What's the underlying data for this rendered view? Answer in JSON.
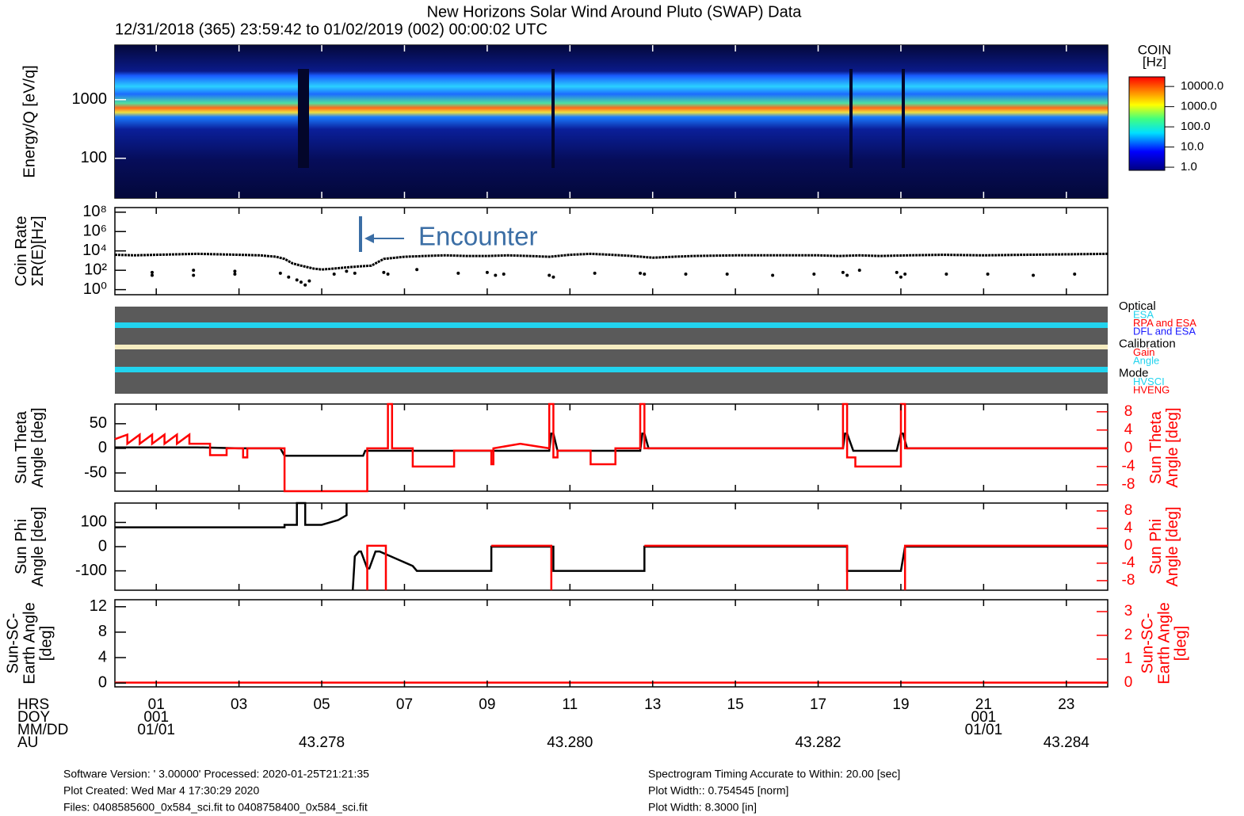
{
  "header": {
    "title": "New Horizons Solar Wind Around Pluto (SWAP) Data",
    "subtitle": "12/31/2018 (365) 23:59:42 to 01/02/2019 (002) 00:00:02 UTC"
  },
  "time_axis": {
    "xlim": [
      0,
      24
    ],
    "rows": [
      "HRS",
      "DOY",
      "MM/DD",
      "AU"
    ],
    "hrs": [
      {
        "value": 1,
        "label": "01"
      },
      {
        "value": 3,
        "label": "03"
      },
      {
        "value": 5,
        "label": "05"
      },
      {
        "value": 7,
        "label": "07"
      },
      {
        "value": 9,
        "label": "09"
      },
      {
        "value": 11,
        "label": "11"
      },
      {
        "value": 13,
        "label": "13"
      },
      {
        "value": 15,
        "label": "15"
      },
      {
        "value": 17,
        "label": "17"
      },
      {
        "value": 19,
        "label": "19"
      },
      {
        "value": 21,
        "label": "21"
      },
      {
        "value": 23,
        "label": "23"
      }
    ],
    "doy": [
      {
        "value": 1,
        "label": "001"
      },
      {
        "value": 21,
        "label": "001"
      }
    ],
    "mmdd": [
      {
        "value": 1,
        "label": "01/01"
      },
      {
        "value": 21,
        "label": "01/01"
      }
    ],
    "au": [
      {
        "value": 5,
        "label": "43.278"
      },
      {
        "value": 11,
        "label": "43.280"
      },
      {
        "value": 17,
        "label": "43.282"
      },
      {
        "value": 23,
        "label": "43.284"
      }
    ]
  },
  "chart_data": [
    {
      "type": "heatmap",
      "ylabel": [
        "Energy/Q [eV/q]"
      ],
      "log_y": true,
      "ylim": [
        21,
        8500
      ],
      "yticks": [
        100,
        1000
      ],
      "colorbar": {
        "title": [
          "COIN",
          "[Hz]"
        ],
        "lim": [
          0.7,
          30000
        ],
        "ticks": [
          {
            "value": 10000,
            "label": "10000.0"
          },
          {
            "value": 1000,
            "label": "1000.0"
          },
          {
            "value": 100,
            "label": "100.0"
          },
          {
            "value": 10,
            "label": "10.0"
          },
          {
            "value": 1,
            "label": "1.0"
          }
        ]
      }
    },
    {
      "type": "scatter",
      "ylabel": [
        "Coin Rate",
        "ΣR(E)[Hz]"
      ],
      "log_y": true,
      "ylim": [
        0.3,
        300000000
      ],
      "yticks": [
        {
          "value": 100000000,
          "label": "10⁸"
        },
        {
          "value": 1000000,
          "label": "10⁶"
        },
        {
          "value": 10000,
          "label": "10⁴"
        },
        {
          "value": 100,
          "label": "10²"
        },
        {
          "value": 1,
          "label": "10⁰"
        }
      ],
      "annotation": "Encounter",
      "series": [
        {
          "color": "#000000",
          "style": "line",
          "x": [
            0,
            0.5,
            1,
            1.5,
            2,
            2.5,
            3,
            3.5,
            3.9,
            4.1,
            4.3,
            4.5,
            4.8,
            5.0,
            5.3,
            5.6,
            5.9,
            6.2,
            6.5,
            7,
            7.5,
            8,
            8.5,
            9,
            9.5,
            10,
            10.5,
            11,
            11.5,
            12,
            12.5,
            13,
            13.5,
            14,
            15,
            16,
            17,
            17.5,
            18,
            18.5,
            19.2,
            20,
            21,
            22,
            23,
            24
          ],
          "values": [
            4000,
            3500,
            4000,
            4500,
            5000,
            4500,
            4000,
            3500,
            2500,
            1500,
            500,
            300,
            150,
            120,
            150,
            200,
            250,
            300,
            1500,
            2500,
            3000,
            3500,
            3000,
            3000,
            3500,
            3000,
            2500,
            4000,
            5000,
            4000,
            3000,
            2000,
            2500,
            3000,
            3500,
            3500,
            3500,
            3000,
            3500,
            3000,
            3500,
            4000,
            3500,
            4000,
            4500,
            5000
          ]
        },
        {
          "color": "#000000",
          "style": "dots",
          "x": [
            0.9,
            0.9,
            1.9,
            1.9,
            2.9,
            2.9,
            4.0,
            4.2,
            4.4,
            4.5,
            4.6,
            4.7,
            5.3,
            5.6,
            5.8,
            6.5,
            6.6,
            7.3,
            8.3,
            9.0,
            9.2,
            9.4,
            10.5,
            10.6,
            11.6,
            12.7,
            12.8,
            13.8,
            14.8,
            15.9,
            16.9,
            17.6,
            17.7,
            18.0,
            18.9,
            19.0,
            19.1,
            20.1,
            21.1,
            22.2,
            23.2
          ],
          "values": [
            60,
            30,
            100,
            30,
            80,
            40,
            50,
            20,
            10,
            6,
            3,
            8,
            40,
            80,
            50,
            60,
            40,
            120,
            50,
            60,
            30,
            40,
            30,
            20,
            50,
            50,
            40,
            40,
            40,
            30,
            40,
            60,
            30,
            100,
            60,
            20,
            40,
            40,
            40,
            30,
            40
          ]
        }
      ]
    },
    {
      "type": "line",
      "ylabel": [
        "Sun Theta",
        "Angle [deg]"
      ],
      "y2label": [
        "Sun Theta",
        "Angle [deg]"
      ],
      "ylim": [
        -87,
        90
      ],
      "yticks": [
        50,
        0,
        -50
      ],
      "y2lim": [
        -9.4,
        9.7
      ],
      "y2ticks": [
        8,
        4,
        0,
        -4,
        -8
      ],
      "series": [
        {
          "color": "#000000",
          "axis": "y",
          "x": [
            0,
            2,
            3,
            4,
            4.1,
            6,
            6.05,
            7.2,
            9.1,
            10.5,
            10.55,
            10.6,
            10.7,
            12.7,
            12.75,
            12.8,
            12.9,
            17.6,
            17.65,
            17.7,
            17.85,
            18.9,
            19.0,
            19.05,
            19.15,
            24
          ],
          "values": [
            2,
            2,
            0,
            0,
            -15,
            -15,
            -5,
            -5,
            -5,
            -5,
            30,
            30,
            -5,
            -5,
            30,
            30,
            0,
            0,
            30,
            30,
            -5,
            -5,
            30,
            30,
            0,
            0
          ]
        },
        {
          "color": "#ff0000",
          "axis": "y2",
          "x": [
            0,
            0.3,
            0.3,
            0.6,
            0.6,
            0.9,
            0.9,
            1.2,
            1.2,
            1.5,
            1.5,
            1.8,
            1.8,
            2.3,
            2.3,
            2.7,
            2.7,
            3.1,
            3.1,
            3.2,
            3.2,
            4.1,
            4.1,
            6.1,
            6.1,
            6.6,
            6.6,
            6.7,
            6.7,
            7.2,
            7.2,
            8.2,
            8.2,
            9.1,
            9.1,
            9.15,
            9.15,
            9.8,
            10.5,
            10.5,
            10.6,
            10.6,
            10.7,
            10.7,
            11.5,
            11.5,
            12.1,
            12.1,
            12.7,
            12.7,
            12.8,
            12.8,
            17.6,
            17.6,
            17.7,
            17.7,
            17.9,
            17.9,
            19.0,
            19.0,
            19.1,
            19.1,
            24
          ],
          "values": [
            2,
            3,
            1,
            3,
            1,
            3,
            1,
            3,
            1,
            3,
            1,
            3,
            1,
            1,
            -1.5,
            -1.5,
            0,
            0,
            -2,
            -2,
            0,
            0,
            -9.4,
            -9.4,
            0,
            0,
            9.7,
            9.7,
            0,
            0,
            -4,
            -4,
            -0.5,
            -0.5,
            -3.5,
            -3.5,
            0,
            1,
            0,
            9.7,
            9.7,
            -2,
            -2,
            -0.5,
            -0.5,
            -3.5,
            -3.5,
            0,
            0,
            9.7,
            9.7,
            0,
            0,
            9.7,
            9.7,
            -2,
            -2,
            -4,
            -4,
            9.7,
            9.7,
            0,
            0
          ]
        }
      ]
    },
    {
      "type": "line",
      "ylabel": [
        "Sun Phi",
        "Angle [deg]"
      ],
      "y2label": [
        "Sun Phi",
        "Angle [deg]"
      ],
      "ylim": [
        -180,
        180
      ],
      "yticks": [
        100,
        0,
        -100
      ],
      "y2lim": [
        -10.2,
        9.8
      ],
      "y2ticks": [
        8,
        4,
        0,
        -4,
        -8
      ],
      "series": [
        {
          "color": "#000000",
          "axis": "y",
          "x": [
            0,
            4.1,
            4.1,
            4.4,
            4.4,
            4.6,
            4.6,
            5.0,
            5.4,
            5.6,
            5.6,
            5.6,
            5.75,
            5.8,
            5.9,
            5.95,
            6.1,
            6.15,
            6.3,
            6.4,
            7.2,
            7.3,
            9.1,
            9.1,
            10.6,
            10.6,
            12.8,
            12.8,
            17.7,
            17.7,
            19.0,
            19.1,
            24
          ],
          "values": [
            80,
            80,
            90,
            90,
            180,
            180,
            90,
            90,
            110,
            130,
            180,
            null,
            -180,
            -40,
            -20,
            -20,
            -90,
            -90,
            -20,
            -20,
            -80,
            -100,
            -100,
            0,
            0,
            -100,
            -100,
            0,
            0,
            -100,
            -100,
            0,
            0
          ]
        },
        {
          "color": "#ff0000",
          "axis": "y2",
          "x": [
            6.1,
            6.1,
            6.55,
            6.55,
            6.55,
            9.1,
            10.55,
            10.55,
            10.55,
            12.8,
            17.7,
            17.7,
            17.7,
            19.1,
            19.1,
            24
          ],
          "values": [
            -10.2,
            0,
            0,
            -10.2,
            null,
            0,
            0,
            -10.2,
            null,
            0,
            0,
            -10.2,
            null,
            -10.2,
            0,
            0
          ]
        }
      ]
    },
    {
      "type": "line",
      "ylabel": [
        "Sun-SC-",
        "Earth Angle",
        "[deg]"
      ],
      "y2label": [
        "Sun-SC-",
        "Earth Angle",
        "[deg]"
      ],
      "ylim": [
        -0.6,
        13.1
      ],
      "yticks": [
        12,
        8,
        4,
        0
      ],
      "y2lim": [
        -0.17,
        3.5
      ],
      "y2ticks": [
        3,
        2,
        1,
        0
      ],
      "series": [
        {
          "color": "#ff0000",
          "axis": "y2",
          "x": [
            0,
            24
          ],
          "values": [
            0.01,
            0.01
          ]
        }
      ]
    }
  ],
  "status_panel": [
    {
      "title": "Optical",
      "items": [
        {
          "label": "ESA",
          "color": "#22d3ee"
        },
        {
          "label": "RPA and ESA",
          "color": "#ff0000"
        },
        {
          "label": "DFL and ESA",
          "color": "#1a1aff"
        }
      ]
    },
    {
      "title": "Calibration",
      "items": [
        {
          "label": "Gain",
          "color": "#ff0000"
        },
        {
          "label": "Angle",
          "color": "#22d3ee"
        }
      ]
    },
    {
      "title": "Mode",
      "items": [
        {
          "label": "HVSCI",
          "color": "#22d3ee"
        },
        {
          "label": "HVENG",
          "color": "#ff0000"
        }
      ]
    }
  ],
  "footer": {
    "left": [
      "Software Version:  ' 3.00000'  Processed: 2020-01-25T21:21:35",
      "Plot Created: Wed Mar  4 17:30:29 2020",
      "Files: 0408585600_0x584_sci.fit to 0408758400_0x584_sci.fit"
    ],
    "right": [
      "Spectrogram Timing Accurate to Within: 20.00 [sec]",
      "Plot Width:: 0.754545 [norm]",
      "Plot Width: 8.3000 [in]"
    ]
  }
}
